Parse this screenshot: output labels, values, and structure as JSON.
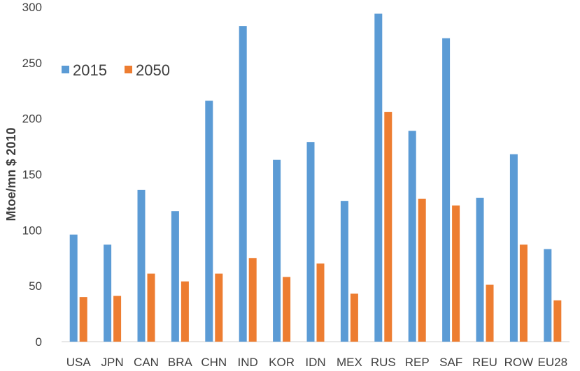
{
  "chart_data": {
    "type": "bar",
    "title": "",
    "xlabel": "",
    "ylabel": "Mtoe/mn $ 2010",
    "ylim": [
      0,
      300
    ],
    "yticks": [
      0,
      50,
      100,
      150,
      200,
      250,
      300
    ],
    "ytick_labels": [
      "0",
      "50",
      "100",
      "150",
      "200",
      "250",
      "300"
    ],
    "grid": false,
    "legend_position": "top-left",
    "categories": [
      "USA",
      "JPN",
      "CAN",
      "BRA",
      "CHN",
      "IND",
      "KOR",
      "IDN",
      "MEX",
      "RUS",
      "REP",
      "SAF",
      "REU",
      "ROW",
      "EU28"
    ],
    "series": [
      {
        "name": "2015",
        "color": "#5B9BD5",
        "values": [
          96,
          87,
          136,
          117,
          216,
          283,
          163,
          179,
          126,
          294,
          189,
          272,
          129,
          168,
          83
        ]
      },
      {
        "name": "2050",
        "color": "#ED7D31",
        "values": [
          40,
          41,
          61,
          54,
          61,
          75,
          58,
          70,
          43,
          206,
          128,
          122,
          51,
          87,
          37
        ]
      }
    ]
  }
}
